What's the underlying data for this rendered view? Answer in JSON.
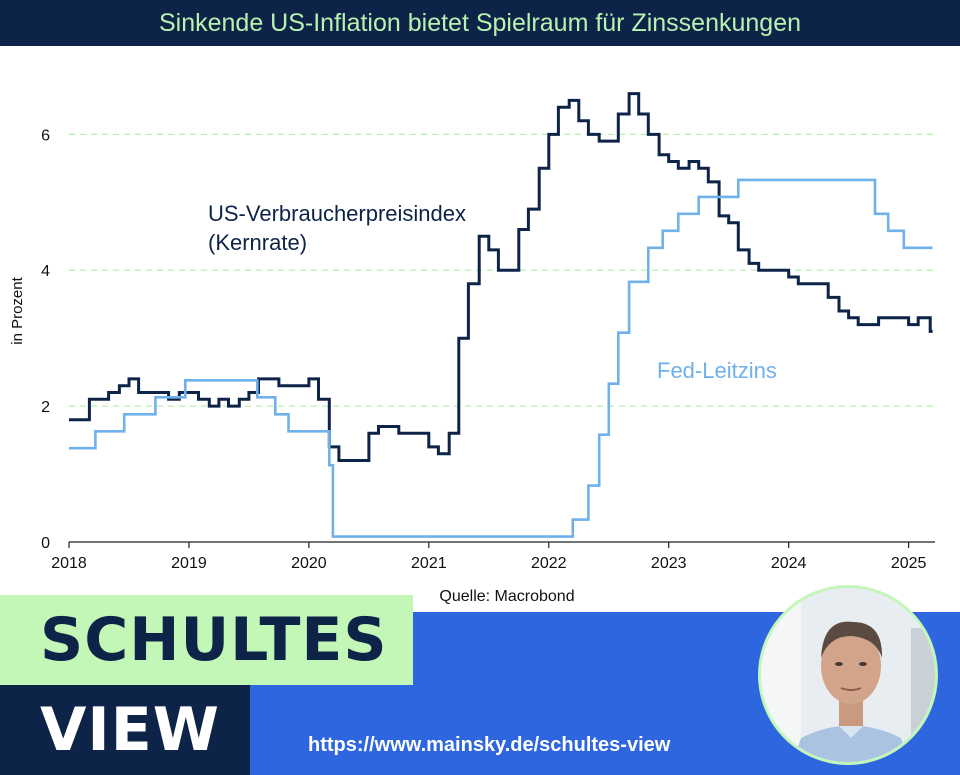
{
  "header": {
    "title": "Sinkende US-Inflation bietet Spielraum für Zinssenkungen"
  },
  "banner": {
    "line1": "SCHULTES",
    "line2": "VIEW",
    "url": "https://www.mainsky.de/schultes-view"
  },
  "colors": {
    "navy": "#0d2347",
    "light_blue": "#6fb1ea",
    "mint": "#c3f7b8",
    "banner_blue": "#2e66e0",
    "grid": "#b8f2b0"
  },
  "chart_data": {
    "type": "line",
    "source": "Quelle: Macrobond",
    "ylabel": "in Prozent",
    "ylim": [
      0,
      6.8
    ],
    "xlim": [
      2018.0,
      2025.22
    ],
    "y_ticks": [
      {
        "value": 0,
        "label": "0"
      },
      {
        "value": 2,
        "label": "2"
      },
      {
        "value": 4,
        "label": "4"
      },
      {
        "value": 6,
        "label": "6"
      }
    ],
    "x_ticks": [
      {
        "value": 2018,
        "label": "2018"
      },
      {
        "value": 2019,
        "label": "2019"
      },
      {
        "value": 2020,
        "label": "2020"
      },
      {
        "value": 2021,
        "label": "2021"
      },
      {
        "value": 2022,
        "label": "2022"
      },
      {
        "value": 2023,
        "label": "2023"
      },
      {
        "value": 2024,
        "label": "2024"
      },
      {
        "value": 2025,
        "label": "2025"
      }
    ],
    "grid": "horizontal dashed",
    "series": [
      {
        "name": "US-Verbraucherpreisindex (Kernrate)",
        "label_lines": [
          "US-Verbraucherpreisindex",
          "(Kernrate)"
        ],
        "color": "#0d2347",
        "step": true,
        "x": [
          2018.0,
          2018.17,
          2018.33,
          2018.42,
          2018.5,
          2018.58,
          2018.67,
          2018.83,
          2018.92,
          2019.0,
          2019.08,
          2019.17,
          2019.25,
          2019.33,
          2019.42,
          2019.5,
          2019.58,
          2019.67,
          2019.75,
          2019.83,
          2019.92,
          2020.0,
          2020.08,
          2020.17,
          2020.25,
          2020.33,
          2020.5,
          2020.58,
          2020.75,
          2021.0,
          2021.08,
          2021.17,
          2021.25,
          2021.33,
          2021.42,
          2021.5,
          2021.58,
          2021.75,
          2021.83,
          2021.92,
          2022.0,
          2022.08,
          2022.17,
          2022.25,
          2022.33,
          2022.42,
          2022.5,
          2022.58,
          2022.67,
          2022.75,
          2022.83,
          2022.92,
          2023.0,
          2023.08,
          2023.17,
          2023.25,
          2023.33,
          2023.42,
          2023.5,
          2023.58,
          2023.67,
          2023.75,
          2023.83,
          2024.0,
          2024.08,
          2024.25,
          2024.33,
          2024.42,
          2024.5,
          2024.58,
          2024.67,
          2024.75,
          2024.92,
          2025.0,
          2025.08,
          2025.18
        ],
        "y": [
          1.8,
          2.1,
          2.2,
          2.3,
          2.4,
          2.2,
          2.2,
          2.1,
          2.2,
          2.2,
          2.1,
          2.0,
          2.1,
          2.0,
          2.1,
          2.2,
          2.4,
          2.4,
          2.3,
          2.3,
          2.3,
          2.4,
          2.1,
          1.4,
          1.2,
          1.2,
          1.6,
          1.7,
          1.6,
          1.4,
          1.3,
          1.6,
          3.0,
          3.8,
          4.5,
          4.3,
          4.0,
          4.6,
          4.9,
          5.5,
          6.0,
          6.4,
          6.5,
          6.2,
          6.0,
          5.9,
          5.9,
          6.3,
          6.6,
          6.3,
          6.0,
          5.7,
          5.6,
          5.5,
          5.6,
          5.5,
          5.3,
          4.8,
          4.7,
          4.3,
          4.1,
          4.0,
          4.0,
          3.9,
          3.8,
          3.8,
          3.6,
          3.4,
          3.3,
          3.2,
          3.2,
          3.3,
          3.3,
          3.2,
          3.3,
          3.1
        ]
      },
      {
        "name": "Fed-Leitzins",
        "label_lines": [
          "Fed-Leitzins"
        ],
        "color": "#6fb1ea",
        "step": true,
        "x": [
          2018.0,
          2018.22,
          2018.46,
          2018.72,
          2018.97,
          2019.57,
          2019.72,
          2019.83,
          2020.17,
          2020.2,
          2022.2,
          2022.33,
          2022.42,
          2022.5,
          2022.58,
          2022.67,
          2022.83,
          2022.95,
          2023.08,
          2023.25,
          2023.33,
          2023.58,
          2024.72,
          2024.83,
          2024.96,
          2025.18
        ],
        "y": [
          1.38,
          1.63,
          1.88,
          2.13,
          2.38,
          2.13,
          1.88,
          1.63,
          1.13,
          0.08,
          0.33,
          0.83,
          1.58,
          2.33,
          3.08,
          3.83,
          4.33,
          4.58,
          4.83,
          5.08,
          5.08,
          5.33,
          4.83,
          4.58,
          4.33,
          4.33
        ]
      }
    ]
  }
}
